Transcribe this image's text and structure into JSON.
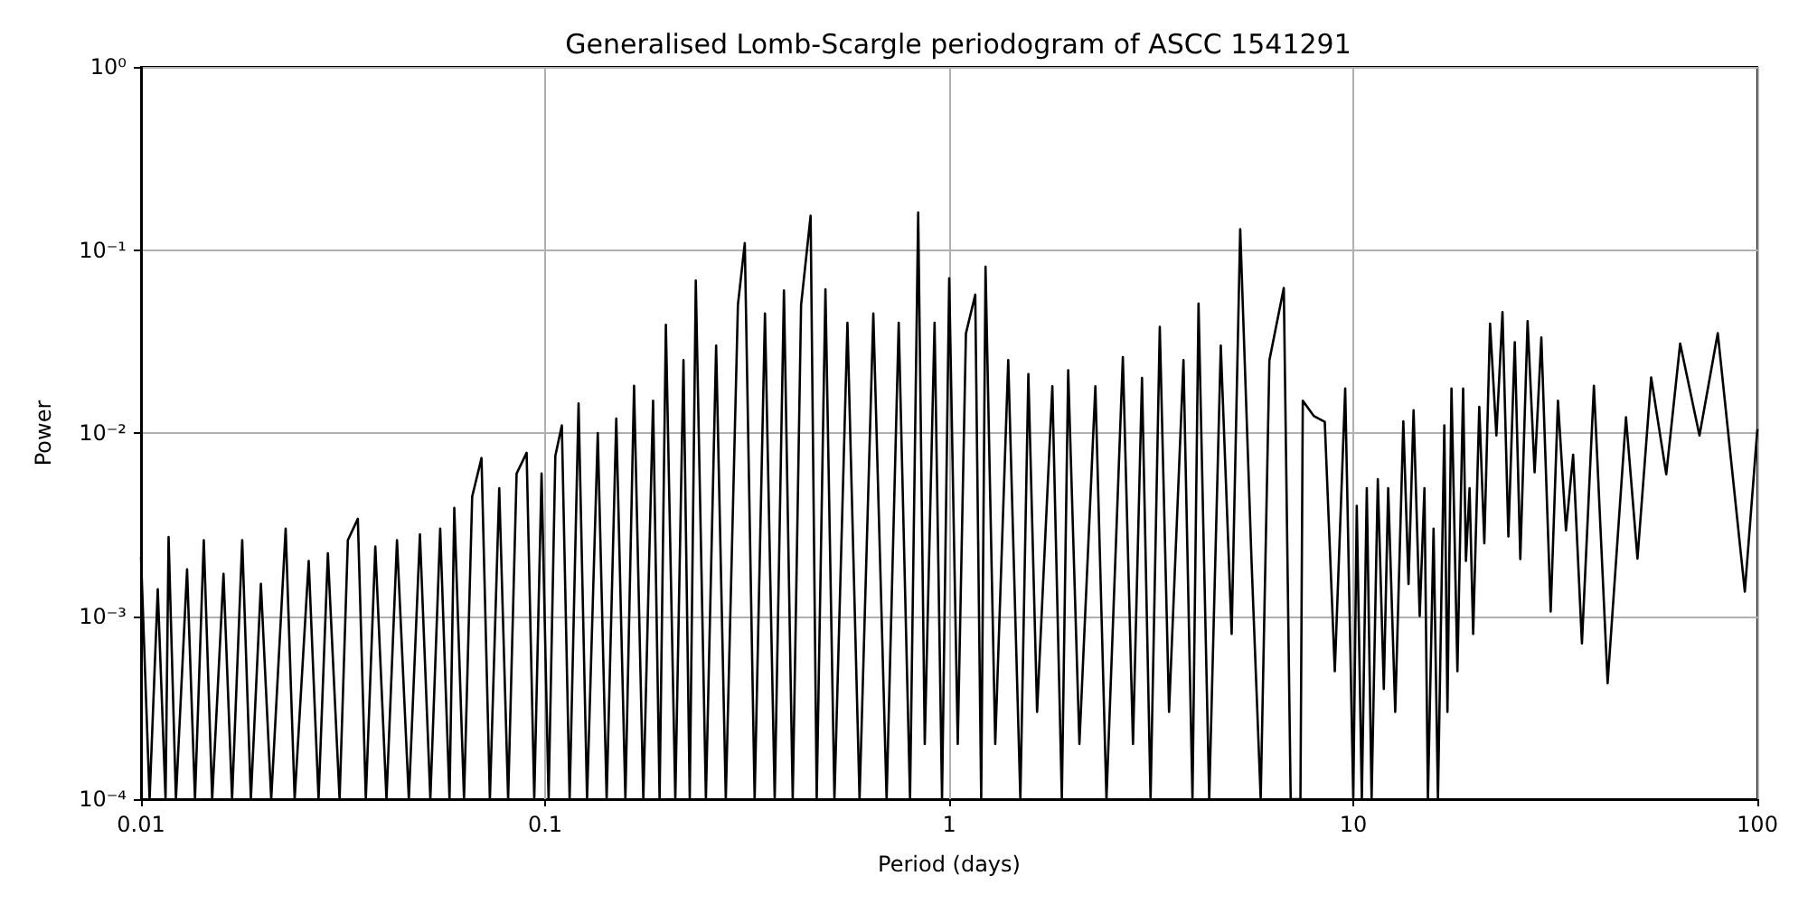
{
  "chart_data": {
    "type": "line",
    "title": "Generalised Lomb-Scargle periodogram of ASCC 1541291",
    "xlabel": "Period (days)",
    "ylabel": "Power",
    "log": "xy",
    "grid": true,
    "marker": "none",
    "line_style": "solid",
    "xlim": [
      0.01,
      100
    ],
    "ylim": [
      0.0001,
      1
    ],
    "xticks": [
      0.01,
      0.1,
      1,
      10,
      100
    ],
    "yticks": [
      {
        "value": 0.0001,
        "label": "10⁻⁴"
      },
      {
        "value": 0.001,
        "label": "10⁻³"
      },
      {
        "value": 0.01,
        "label": "10⁻²"
      },
      {
        "value": 0.1,
        "label": "10⁻¹"
      },
      {
        "value": 1,
        "label": "10⁰"
      }
    ],
    "series": [
      {
        "color": "#000000",
        "x": [
          0.01,
          0.0105,
          0.011,
          0.0115,
          0.0117,
          0.0122,
          0.013,
          0.0136,
          0.0143,
          0.015,
          0.016,
          0.0168,
          0.0178,
          0.0187,
          0.0198,
          0.021,
          0.0228,
          0.024,
          0.026,
          0.0275,
          0.029,
          0.031,
          0.0325,
          0.0344,
          0.036,
          0.038,
          0.0405,
          0.043,
          0.046,
          0.049,
          0.052,
          0.055,
          0.058,
          0.0596,
          0.063,
          0.066,
          0.0696,
          0.073,
          0.077,
          0.081,
          0.085,
          0.09,
          0.094,
          0.098,
          0.102,
          0.106,
          0.11,
          0.115,
          0.121,
          0.127,
          0.135,
          0.142,
          0.15,
          0.158,
          0.166,
          0.175,
          0.185,
          0.192,
          0.199,
          0.21,
          0.22,
          0.228,
          0.236,
          0.25,
          0.265,
          0.28,
          0.3,
          0.312,
          0.33,
          0.35,
          0.37,
          0.39,
          0.41,
          0.43,
          0.454,
          0.47,
          0.494,
          0.52,
          0.56,
          0.6,
          0.649,
          0.7,
          0.75,
          0.8,
          0.838,
          0.87,
          0.92,
          0.96,
          1.0,
          1.05,
          1.1,
          1.16,
          1.2,
          1.23,
          1.3,
          1.4,
          1.5,
          1.57,
          1.65,
          1.8,
          1.9,
          1.97,
          2.1,
          2.3,
          2.45,
          2.69,
          2.85,
          3.0,
          3.15,
          3.32,
          3.5,
          3.8,
          4.0,
          4.14,
          4.4,
          4.7,
          5.0,
          5.25,
          5.6,
          5.9,
          6.2,
          6.73,
          7.0,
          7.4,
          7.5,
          7.98,
          8.5,
          9.0,
          9.55,
          10.0,
          10.2,
          10.5,
          10.8,
          11.1,
          11.5,
          11.9,
          12.2,
          12.7,
          13.3,
          13.7,
          14.1,
          14.6,
          15.0,
          15.3,
          15.8,
          16.2,
          16.8,
          17.1,
          17.5,
          18.1,
          18.7,
          19.0,
          19.4,
          19.8,
          20.5,
          21.1,
          21.8,
          22.6,
          23.4,
          24.2,
          25.1,
          25.9,
          27.0,
          28.1,
          29.2,
          30.8,
          32.1,
          33.6,
          35.0,
          36.8,
          39.4,
          42.6,
          47.3,
          50.5,
          54.6,
          59.5,
          64.4,
          71.9,
          79.8,
          93.1,
          100
        ],
        "values": [
          0.0021,
          0.0001,
          0.0014,
          0.0001,
          0.0027,
          0.0001,
          0.0018,
          0.0001,
          0.0026,
          0.0001,
          0.0017,
          0.0001,
          0.0026,
          0.0001,
          0.0015,
          0.0001,
          0.003,
          0.0001,
          0.002,
          0.0001,
          0.0022,
          0.0001,
          0.0026,
          0.0034,
          0.0001,
          0.0024,
          0.0001,
          0.0026,
          0.0001,
          0.0028,
          0.0001,
          0.003,
          0.0001,
          0.0039,
          0.0001,
          0.0045,
          0.0073,
          0.0001,
          0.005,
          0.0001,
          0.006,
          0.0078,
          0.0001,
          0.006,
          0.0001,
          0.0075,
          0.011,
          0.0001,
          0.0145,
          0.0001,
          0.01,
          0.0001,
          0.012,
          0.0001,
          0.0181,
          0.0001,
          0.015,
          0.0001,
          0.039,
          0.0001,
          0.025,
          0.0001,
          0.068,
          0.0001,
          0.03,
          0.0001,
          0.05,
          0.109,
          0.0001,
          0.045,
          0.0001,
          0.06,
          0.0001,
          0.05,
          0.154,
          0.0001,
          0.061,
          0.0001,
          0.04,
          0.0001,
          0.045,
          0.0001,
          0.04,
          0.0001,
          0.16,
          0.0002,
          0.04,
          0.0001,
          0.07,
          0.0002,
          0.035,
          0.057,
          0.0001,
          0.081,
          0.0002,
          0.025,
          0.0001,
          0.021,
          0.0003,
          0.018,
          0.0001,
          0.022,
          0.0002,
          0.018,
          0.0001,
          0.026,
          0.0002,
          0.02,
          0.0001,
          0.038,
          0.0003,
          0.025,
          0.0001,
          0.051,
          0.0001,
          0.03,
          0.0008,
          0.13,
          0.002,
          0.0001,
          0.025,
          0.062,
          0.0001,
          0.0001,
          0.015,
          0.0124,
          0.0115,
          0.0005,
          0.0175,
          0.0001,
          0.004,
          0.0001,
          0.005,
          0.0001,
          0.0056,
          0.0004,
          0.005,
          0.0003,
          0.0116,
          0.0015,
          0.0133,
          0.001,
          0.005,
          0.0001,
          0.003,
          0.0001,
          0.011,
          0.0003,
          0.0175,
          0.0005,
          0.0175,
          0.002,
          0.005,
          0.0008,
          0.0139,
          0.0025,
          0.0396,
          0.0097,
          0.0457,
          0.00272,
          0.0313,
          0.00205,
          0.0408,
          0.0061,
          0.0333,
          0.00106,
          0.015,
          0.00294,
          0.0076,
          0.00071,
          0.0181,
          0.00043,
          0.0122,
          0.00206,
          0.0201,
          0.00595,
          0.0308,
          0.0097,
          0.0351,
          0.00136,
          0.0105
        ]
      }
    ]
  }
}
